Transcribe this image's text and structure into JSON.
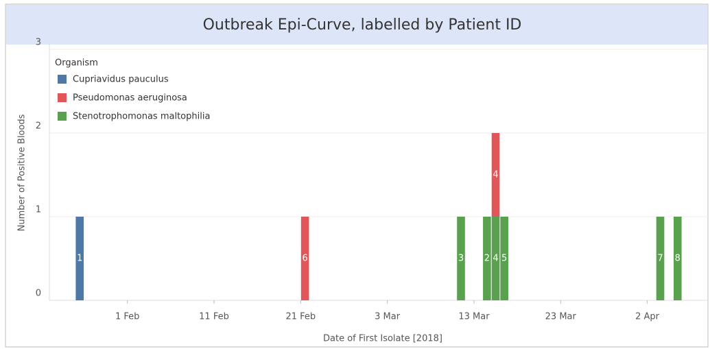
{
  "chart_data": {
    "type": "bar",
    "stacked": true,
    "title": "Outbreak Epi-Curve, labelled by Patient ID",
    "x_label": "Date of First Isolate [2018]",
    "y_label": "Number of Positive Bloods",
    "legend_title": "Organism",
    "legend": "top-left",
    "grid": true,
    "xlim": [
      "2018-01-23",
      "2018-04-09"
    ],
    "xticks": [
      {
        "value": "2018-02-01",
        "label": "1 Feb"
      },
      {
        "value": "2018-02-11",
        "label": "11 Feb"
      },
      {
        "value": "2018-02-21",
        "label": "21 Feb"
      },
      {
        "value": "2018-03-03",
        "label": "3 Mar"
      },
      {
        "value": "2018-03-13",
        "label": "13 Mar"
      },
      {
        "value": "2018-03-23",
        "label": "23 Mar"
      },
      {
        "value": "2018-04-02",
        "label": "2 Apr"
      }
    ],
    "ylim": [
      0,
      3
    ],
    "yticks": [
      0,
      1,
      2,
      3
    ],
    "series": [
      {
        "name": "Cupriavidus pauculus",
        "color": "#4e79a7",
        "x": [
          "2018-01-26"
        ],
        "values": [
          1
        ],
        "labels": [
          "1"
        ]
      },
      {
        "name": "Pseudomonas aeruginosa",
        "color": "#e15759",
        "x": [
          "2018-02-21",
          "2018-03-15"
        ],
        "values": [
          1,
          1
        ],
        "labels": [
          "6",
          "4"
        ]
      },
      {
        "name": "Stenotrophomonas maltophilia",
        "color": "#59a14f",
        "x": [
          "2018-03-11",
          "2018-03-14",
          "2018-03-15",
          "2018-03-16",
          "2018-04-03",
          "2018-04-05"
        ],
        "values": [
          1,
          1,
          1,
          1,
          1,
          1
        ],
        "labels": [
          "3",
          "2",
          "4",
          "5",
          "7",
          "8"
        ]
      }
    ]
  }
}
